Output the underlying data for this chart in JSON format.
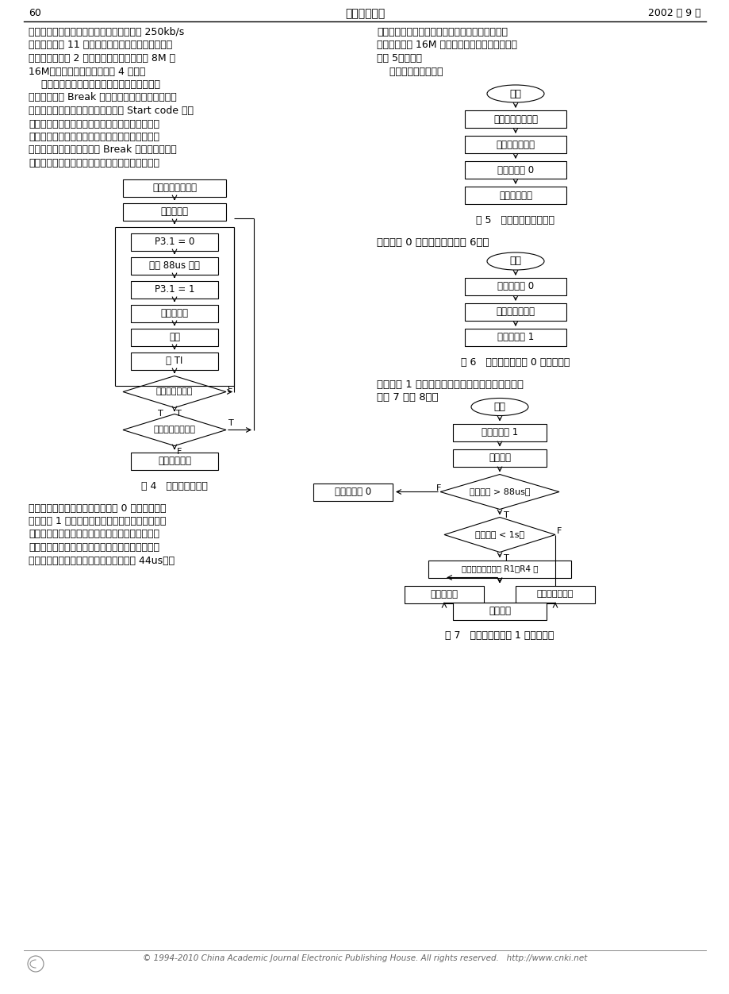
{
  "page_num": "60",
  "journal_name": "照明工程学报",
  "date": "2002 年 9 月",
  "bg_color": "#ffffff",
  "text_color": "#000000",
  "body_text_left_1": [
    "数据时序要求的控制信息数据包，为了达到 250kb/s",
    "波特率的异步 11 位数据传送的要求，控制器端单片",
    "机可工作在方式 2 状态，单片机晶振可采用 8M 或",
    "16M。发送数据程序流程如图 4 所示："
  ],
  "body_text_left_2": [
    "    接收端通过外部中断响应来检测数据的起始位",
    "置，当接收到 Break 信号后，系统相关计数变量寄",
    "存器复位，准备接收数据；当接收到 Start code 信号",
    "后，对其后面的数据帧进行计数，当数据帧数与预",
    "设的本机地址相等时接收该帧数据并停止本机串口",
    "接收数据，开始检测是否有 Break 信号，否则就放",
    "弃该帧数据，等待下一帧数据。为了不占用定时器"
  ],
  "body_text_right_1": [
    "了满足数据的时序要求并提高单片机处理的速度，",
    "单片机应采用 16M 晶振。接收端相关程序流程图",
    "（图 5）如下。"
  ],
  "body_text_right_2": "    接收端主程序流程：",
  "body_text_bottom_left": [
    "资源，采用程序计时，由外部中断 0 触发计时，由",
    "外部中断 1 停止计时。由于接收端在响应串口中断",
    "后有响应的处理程序，要花费一定的时间，为了保",
    "证数据帧的正确接收，单片机的处理速度应尽量的",
    "快，串口中断响应程序执行时间不得超过 44us。为"
  ],
  "fig4_caption": "图 4   发送程序流程图",
  "fig5_caption": "图 5   接收端主程序流程图",
  "fig6_caption": "图 6   接收端外部中断 0 程序流程图",
  "fig7_caption": "图 7   接收端外部中断 1 程序流程图",
  "ext_int0_title": "外部中断 0 服务程序流程（图 6）：",
  "ext_int1_title": "外部中断 1 服务程序流程和串口中断服务程序流程",
  "ext_int1_title2": "（图 7 和图 8）：",
  "copyright": "© 1994-2010 China Academic Journal Electronic Publishing House. All rights reserved.   http://www.cnki.net",
  "fc4_boxes": [
    "设置串口工作方式",
    "开串口中断",
    "P3.1 = 0",
    "延时 88us 以上",
    "P3.1 = 1",
    "发送数据帧",
    "延时",
    "清 TI",
    "数据包发送完？",
    "发送下一数据包？",
    "其他处理程序"
  ],
  "fc5_boxes": [
    "开始",
    "设置串口工作方式",
    "设置中断优先级",
    "开外部中断 0",
    "其他处理程序"
  ],
  "fc6_boxes": [
    "开始",
    "关外部中断 0",
    "调用计时子程序",
    "开外部中断 1"
  ],
  "fc7_boxes": [
    "开始",
    "关外部中断 1",
    "停止计时",
    "计时时间 > 88us？",
    "开外部中断 0",
    "计时时间 < 1s？",
    "数据帧计数寄存器 R1, R4 复",
    "开串口中断",
    "错误处理子程序",
    "中断返回"
  ]
}
